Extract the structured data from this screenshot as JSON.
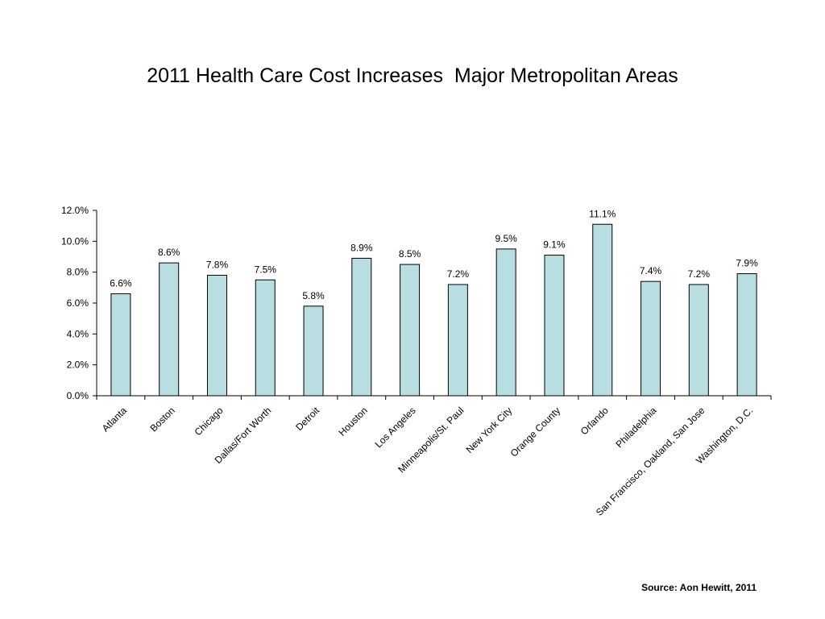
{
  "chart_data": {
    "type": "bar",
    "title": "2011 Health Care Cost Increases  Major Metropolitan Areas",
    "xlabel": "",
    "ylabel": "",
    "categories": [
      "Atlanta",
      "Boston",
      "Chicago",
      "Dallas/Fort Worth",
      "Detroit",
      "Houston",
      "Los Angeles",
      "Minneapolis/St. Paul",
      "New York City",
      "Orange County",
      "Orlando",
      "Philadelphia",
      "San Francisco, Oakland, San Jose",
      "Washington, D.C."
    ],
    "values": [
      6.6,
      8.6,
      7.8,
      7.5,
      5.8,
      8.9,
      8.5,
      7.2,
      9.5,
      9.1,
      11.1,
      7.4,
      7.2,
      7.9
    ],
    "data_labels": [
      "6.6%",
      "8.6%",
      "7.8%",
      "7.5%",
      "5.8%",
      "8.9%",
      "8.5%",
      "7.2%",
      "9.5%",
      "9.1%",
      "11.1%",
      "7.4%",
      "7.2%",
      "7.9%"
    ],
    "y_ticks": [
      0,
      2,
      4,
      6,
      8,
      10,
      12
    ],
    "y_tick_labels": [
      "0.0%",
      "2.0%",
      "4.0%",
      "6.0%",
      "8.0%",
      "10.0%",
      "12.0%"
    ],
    "ylim": [
      0,
      12
    ],
    "grid": false,
    "bar_color": "#b9dee2",
    "bar_edge_color": "#000000"
  },
  "source": "Source: Aon Hewitt, 2011"
}
